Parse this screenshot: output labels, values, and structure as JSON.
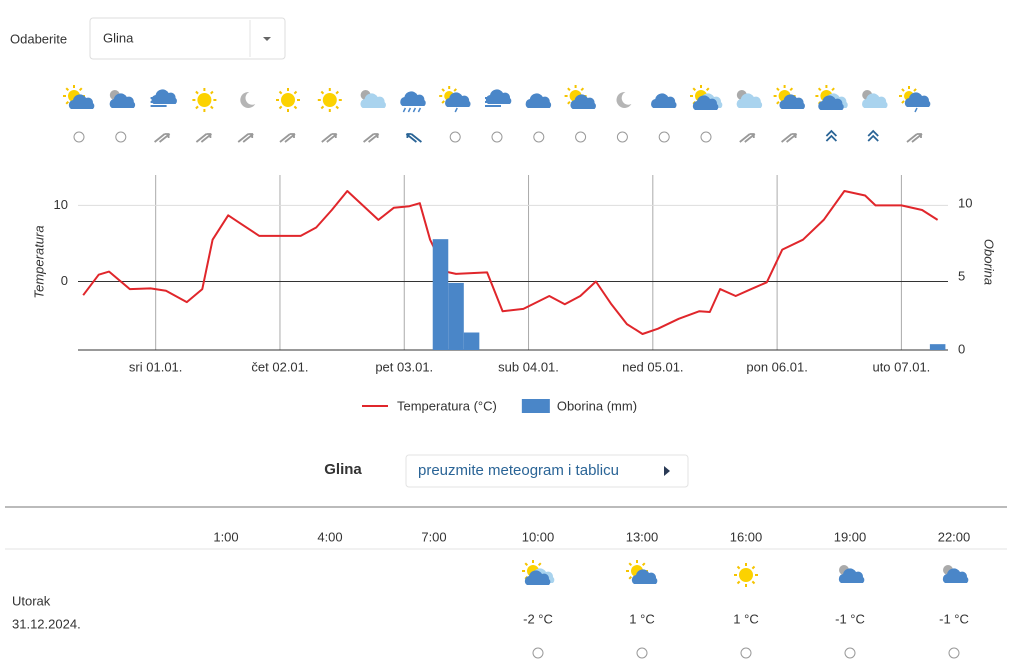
{
  "location": {
    "label": "Odaberite",
    "selected": "Glina"
  },
  "chart_data": {
    "type": "line",
    "ylabel": "Temperatura",
    "y2label": "Oborina",
    "xlim": [
      9,
      177
    ],
    "xticks": [
      {
        "value": 24,
        "label": "sri 01.01."
      },
      {
        "value": 48,
        "label": "čet 02.01."
      },
      {
        "value": 72,
        "label": "pet 03.01."
      },
      {
        "value": 96,
        "label": "sub 04.01."
      },
      {
        "value": 120,
        "label": "ned 05.01."
      },
      {
        "value": 144,
        "label": "pon 06.01."
      },
      {
        "value": 168,
        "label": "uto 07.01."
      }
    ],
    "ylim": [
      -9,
      14
    ],
    "yticks": [
      0,
      10
    ],
    "y2lim": [
      0,
      12
    ],
    "y2ticks": [
      0,
      5,
      10
    ],
    "grid": true,
    "series": [
      {
        "name": "Temperatura (°C)",
        "type": "line",
        "color": "#e0262b",
        "x": [
          10,
          13,
          15,
          19,
          23,
          26,
          30,
          33,
          35,
          38,
          40,
          44,
          48,
          52,
          55,
          58,
          61,
          64,
          67,
          70,
          73,
          75,
          77,
          80,
          82,
          88,
          91,
          95,
          100,
          103,
          106,
          109,
          112,
          115,
          118,
          121,
          125,
          129,
          131,
          133,
          136,
          139,
          142,
          145,
          149,
          153,
          157,
          161,
          163,
          168,
          172,
          175
        ],
        "values": [
          -1.8,
          0.9,
          1.3,
          -1,
          -0.9,
          -1.2,
          -2.7,
          -1,
          5.5,
          8.7,
          7.8,
          6,
          6,
          6,
          7.1,
          9.4,
          11.9,
          10,
          8.1,
          9.7,
          9.9,
          10.3,
          5.5,
          1.3,
          1,
          1.2,
          -3.9,
          -3.6,
          -1.9,
          -3,
          -1.9,
          0,
          -3,
          -5.6,
          -6.9,
          -6.2,
          -4.9,
          -3.9,
          -4,
          -1,
          -1.9,
          -1,
          -0.1,
          4.2,
          5.5,
          8.1,
          11.9,
          11.3,
          10,
          10,
          9.4,
          8.1
        ]
      },
      {
        "name": "Oborina (mm)",
        "type": "bar",
        "axis": "y2",
        "color": "#4a86c8",
        "x": [
          79,
          82,
          85,
          175
        ],
        "values": [
          7.6,
          4.6,
          1.2,
          0.4
        ]
      }
    ]
  },
  "download": {
    "place": "Glina",
    "button": "preuzmite meteogram i tablicu"
  },
  "table": {
    "columns": [
      "1:00",
      "4:00",
      "7:00",
      "10:00",
      "13:00",
      "16:00",
      "19:00",
      "22:00"
    ],
    "rows": [
      {
        "day": "Utorak",
        "date": "31.12.2024.",
        "temps": [
          "-2 °C",
          "1 °C",
          "1 °C",
          "-1 °C",
          "-1 °C"
        ]
      }
    ]
  }
}
